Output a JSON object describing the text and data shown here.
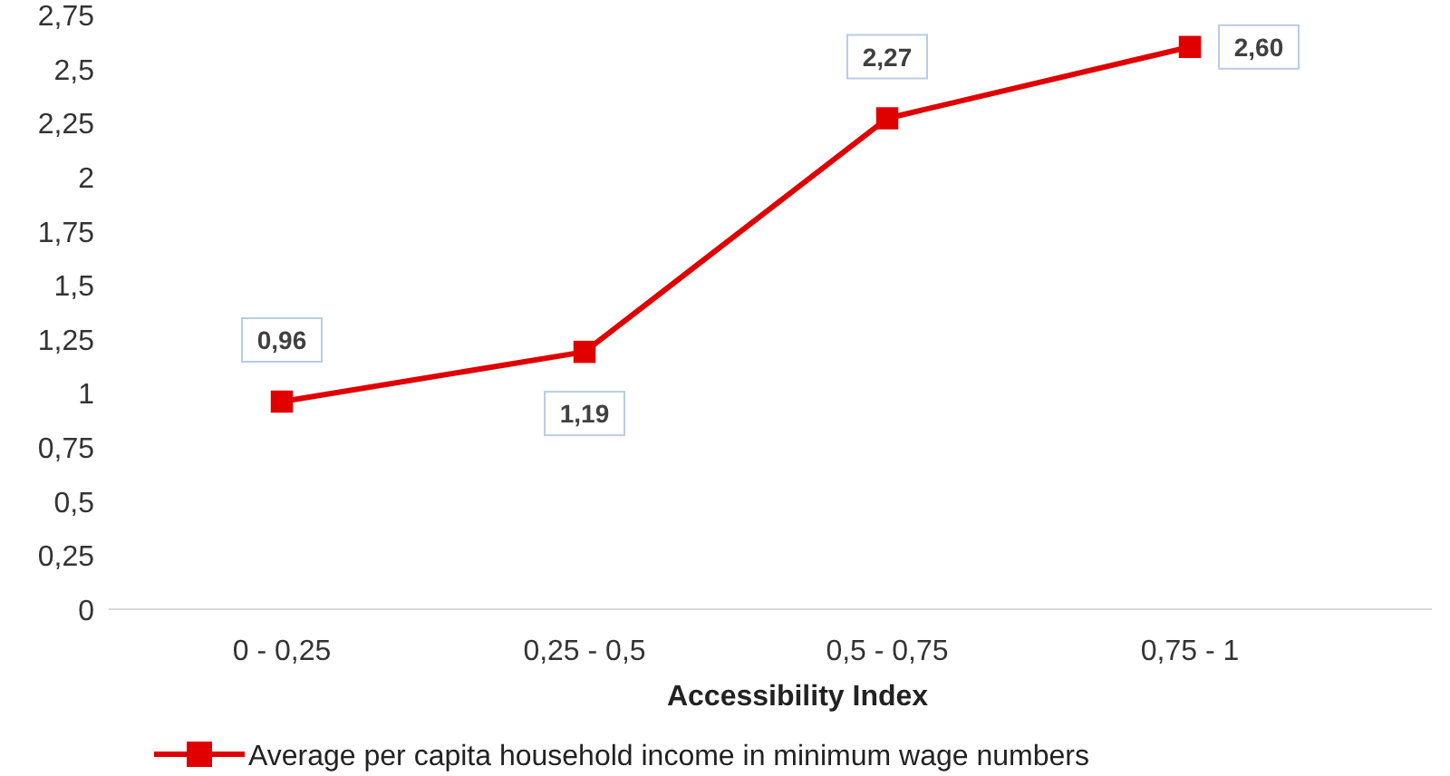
{
  "chart_data": {
    "type": "line",
    "xlabel": "Accessibility Index",
    "categories": [
      "0 - 0,25",
      "0,25 - 0,5",
      "0,5 - 0,75",
      "0,75 - 1"
    ],
    "series": [
      {
        "name": "Average per capita household income in minimum wage numbers",
        "color": "#e00000",
        "values": [
          0.96,
          1.19,
          2.27,
          2.6
        ],
        "value_labels": [
          "0,96",
          "1,19",
          "2,27",
          "2,60"
        ]
      }
    ],
    "ylim": [
      0,
      2.75
    ],
    "yticks": [
      0,
      {
        "value": 0.25,
        "label": "0,25"
      },
      {
        "value": 0.5,
        "label": "0,5"
      },
      {
        "value": 0.75,
        "label": "0,75"
      },
      1,
      {
        "value": 1.25,
        "label": "1,25"
      },
      {
        "value": 1.5,
        "label": "1,5"
      },
      {
        "value": 1.75,
        "label": "1,75"
      },
      2,
      {
        "value": 2.25,
        "label": "2,25"
      },
      {
        "value": 2.5,
        "label": "2,5"
      },
      {
        "value": 2.75,
        "label": "2,75"
      }
    ],
    "grid": false,
    "legend": "bottom",
    "marker": "square",
    "line_style": "solid"
  }
}
